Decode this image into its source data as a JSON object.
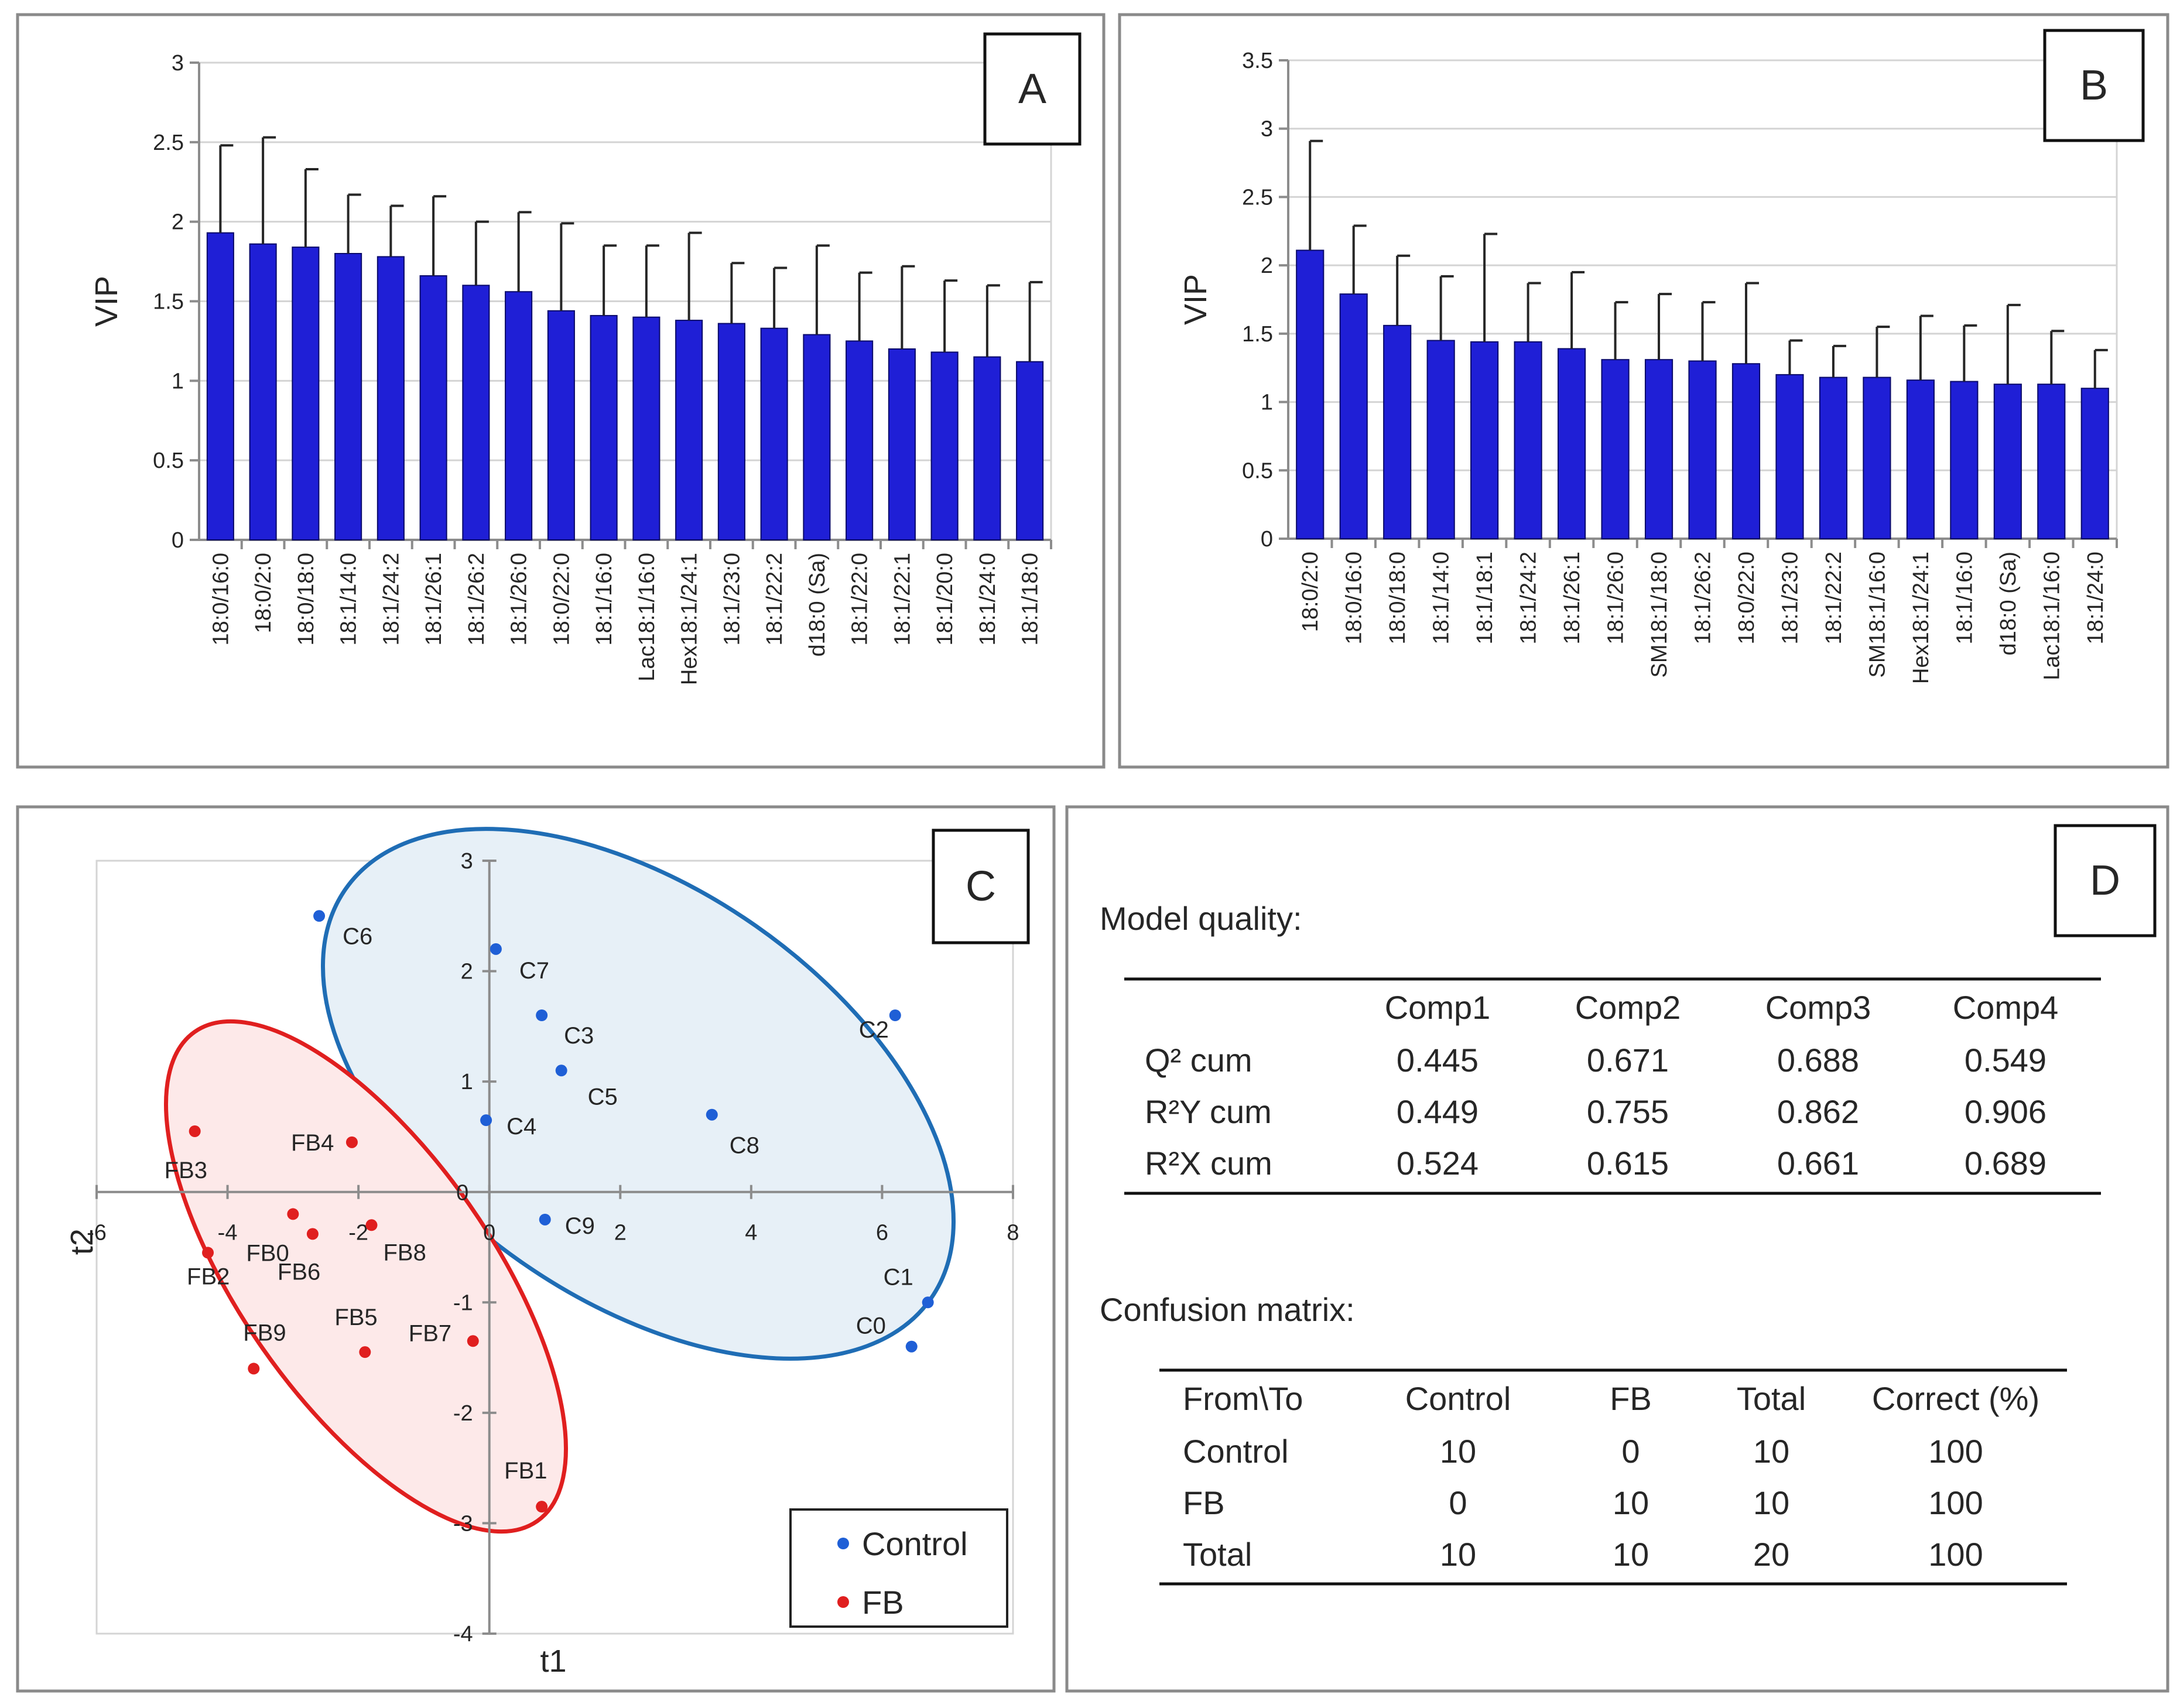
{
  "colors": {
    "bar": "#1f1fd6",
    "control": "#1f5fd6",
    "fb": "#e01f1f",
    "ellipse_control": "#1f6db5",
    "ellipse_fb": "#e01f1f"
  },
  "chart_data": [
    {
      "panel": "A",
      "type": "bar",
      "ylabel": "VIP",
      "ylim": [
        0,
        3
      ],
      "yticks": [
        0,
        0.5,
        1,
        1.5,
        2,
        2.5,
        3
      ],
      "categories": [
        "18:0/16:0",
        "18:0/2:0",
        "18:0/18:0",
        "18:1/14:0",
        "18:1/24:2",
        "18:1/26:1",
        "18:1/26:2",
        "18:1/26:0",
        "18:0/22:0",
        "18:1/16:0",
        "Lac18:1/16:0",
        "Hex18:1/24:1",
        "18:1/23:0",
        "18:1/22:2",
        "d18:0 (Sa)",
        "18:1/22:0",
        "18:1/22:1",
        "18:1/20:0",
        "18:1/24:0",
        "18:1/18:0"
      ],
      "values": [
        1.93,
        1.86,
        1.84,
        1.8,
        1.78,
        1.66,
        1.6,
        1.56,
        1.44,
        1.41,
        1.4,
        1.38,
        1.36,
        1.33,
        1.29,
        1.25,
        1.2,
        1.18,
        1.15,
        1.12
      ],
      "error": [
        0.55,
        0.67,
        0.49,
        0.37,
        0.32,
        0.5,
        0.4,
        0.5,
        0.55,
        0.44,
        0.45,
        0.55,
        0.38,
        0.38,
        0.56,
        0.43,
        0.52,
        0.45,
        0.45,
        0.5
      ]
    },
    {
      "panel": "B",
      "type": "bar",
      "ylabel": "VIP",
      "ylim": [
        0,
        3.5
      ],
      "yticks": [
        0,
        0.5,
        1,
        1.5,
        2,
        2.5,
        3,
        3.5
      ],
      "categories": [
        "18:0/2:0",
        "18:0/16:0",
        "18:0/18:0",
        "18:1/14:0",
        "18:1/18:1",
        "18:1/24:2",
        "18:1/26:1",
        "18:1/26:0",
        "SM18:1/18:0",
        "18:1/26:2",
        "18:0/22:0",
        "18:1/23:0",
        "18:1/22:2",
        "SM18:1/16:0",
        "Hex18:1/24:1",
        "18:1/16:0",
        "d18:0 (Sa)",
        "Lac18:1/16:0",
        "18:1/24:0"
      ],
      "values": [
        2.11,
        1.79,
        1.56,
        1.45,
        1.44,
        1.44,
        1.39,
        1.31,
        1.31,
        1.3,
        1.28,
        1.2,
        1.18,
        1.18,
        1.16,
        1.15,
        1.13,
        1.13,
        1.1
      ],
      "error": [
        0.8,
        0.5,
        0.51,
        0.47,
        0.79,
        0.43,
        0.56,
        0.42,
        0.48,
        0.43,
        0.59,
        0.25,
        0.23,
        0.37,
        0.47,
        0.41,
        0.58,
        0.39,
        0.28
      ]
    },
    {
      "panel": "C",
      "type": "scatter",
      "xlabel": "t1",
      "ylabel": "t2",
      "xlim": [
        -6,
        8
      ],
      "ylim": [
        -4,
        3
      ],
      "xticks": [
        -6,
        -4,
        -2,
        0,
        2,
        4,
        6,
        8
      ],
      "yticks": [
        -4,
        -3,
        -2,
        -1,
        1,
        2,
        3
      ],
      "legend": [
        "Control",
        "FB"
      ],
      "series": [
        {
          "name": "Control",
          "points": [
            {
              "label": "C6",
              "x": -2.6,
              "y": 2.5
            },
            {
              "label": "C7",
              "x": 0.1,
              "y": 2.2
            },
            {
              "label": "C3",
              "x": 0.8,
              "y": 1.6
            },
            {
              "label": "C5",
              "x": 1.1,
              "y": 1.1
            },
            {
              "label": "C4",
              "x": -0.05,
              "y": 0.65
            },
            {
              "label": "C8",
              "x": 3.4,
              "y": 0.7
            },
            {
              "label": "C2",
              "x": 6.2,
              "y": 1.6
            },
            {
              "label": "C9",
              "x": 0.85,
              "y": -0.25
            },
            {
              "label": "C1",
              "x": 6.7,
              "y": -1.0
            },
            {
              "label": "C0",
              "x": 6.45,
              "y": -1.4
            }
          ]
        },
        {
          "name": "FB",
          "points": [
            {
              "label": "FB3",
              "x": -4.5,
              "y": 0.55
            },
            {
              "label": "FB4",
              "x": -2.1,
              "y": 0.45
            },
            {
              "label": "FB0",
              "x": -3.0,
              "y": -0.2
            },
            {
              "label": "FB8",
              "x": -1.8,
              "y": -0.3
            },
            {
              "label": "FB6",
              "x": -2.7,
              "y": -0.38
            },
            {
              "label": "FB2",
              "x": -4.3,
              "y": -0.55
            },
            {
              "label": "FB9",
              "x": -3.6,
              "y": -1.6
            },
            {
              "label": "FB5",
              "x": -1.9,
              "y": -1.45
            },
            {
              "label": "FB7",
              "x": -0.25,
              "y": -1.35
            },
            {
              "label": "FB1",
              "x": 0.8,
              "y": -2.85
            }
          ]
        }
      ]
    }
  ],
  "panel_letters": {
    "a": "A",
    "b": "B",
    "c": "C",
    "d": "D"
  },
  "model_quality": {
    "title": "Model quality:",
    "headers": [
      "",
      "Comp1",
      "Comp2",
      "Comp3",
      "Comp4"
    ],
    "rows": [
      [
        "Q² cum",
        "0.445",
        "0.671",
        "0.688",
        "0.549"
      ],
      [
        "R²Y cum",
        "0.449",
        "0.755",
        "0.862",
        "0.906"
      ],
      [
        "R²X cum",
        "0.524",
        "0.615",
        "0.661",
        "0.689"
      ]
    ]
  },
  "confusion_matrix": {
    "title": "Confusion matrix:",
    "headers": [
      "From\\To",
      "Control",
      "FB",
      "Total",
      "Correct (%)"
    ],
    "rows": [
      [
        "Control",
        "10",
        "0",
        "10",
        "100"
      ],
      [
        "FB",
        "0",
        "10",
        "10",
        "100"
      ],
      [
        "Total",
        "10",
        "10",
        "20",
        "100"
      ]
    ]
  }
}
